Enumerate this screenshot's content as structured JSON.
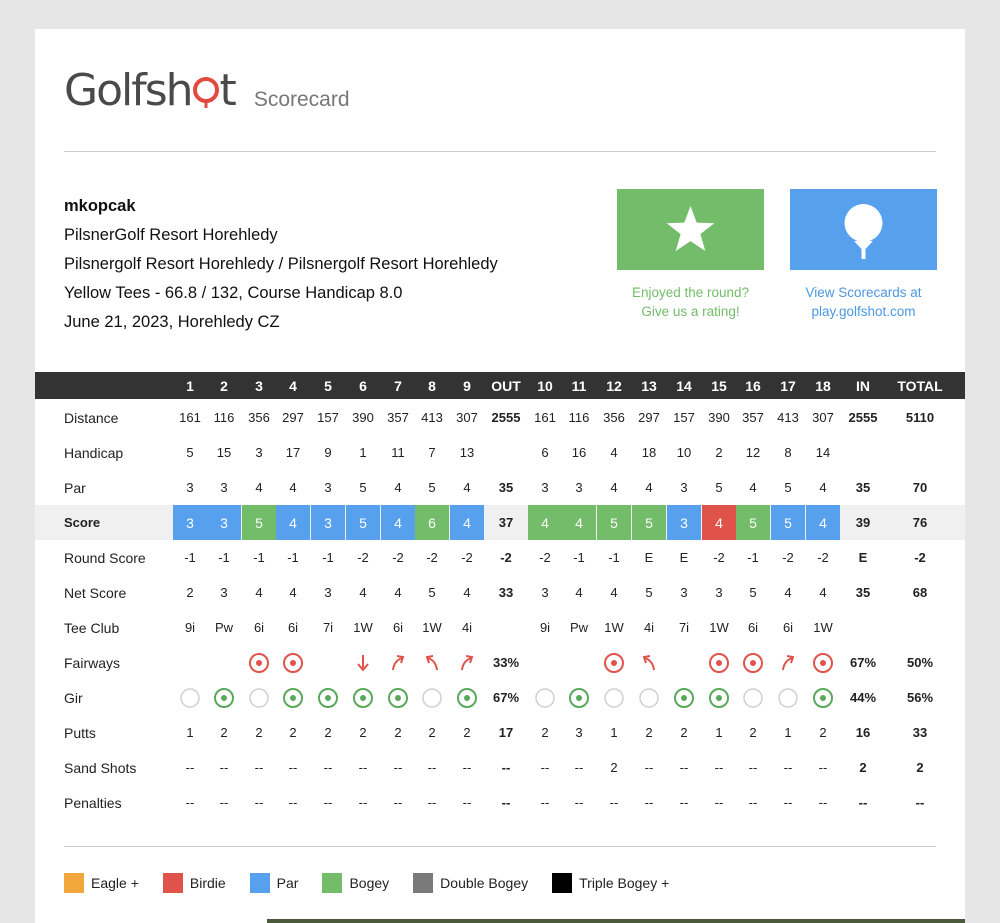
{
  "brand": {
    "name": "Golfshot",
    "name_before_o": "Golfsh",
    "name_after_o": "t",
    "subtitle": "Scorecard",
    "accent": "#e24a3f"
  },
  "round": {
    "user": "mkopcak",
    "club": "PilsnerGolf Resort Horehledy",
    "course": "Pilsnergolf Resort Horehledy / Pilsnergolf Resort Horehledy",
    "tees": "Yellow Tees - 66.8 / 132, Course Handicap 8.0",
    "date": "June 21, 2023, Horehledy CZ"
  },
  "actions": {
    "rate": {
      "icon": "star-icon",
      "caption_line1": "Enjoyed the round?",
      "caption_line2": "Give us a rating!",
      "color": "#73bd6a"
    },
    "view": {
      "icon": "golf-ball-icon",
      "caption_line1": "View Scorecards at",
      "caption_line2": "play.golfshot.com",
      "color": "#56a0ee"
    }
  },
  "columns": [
    "1",
    "2",
    "3",
    "4",
    "5",
    "6",
    "7",
    "8",
    "9",
    "OUT",
    "10",
    "11",
    "12",
    "13",
    "14",
    "15",
    "16",
    "17",
    "18",
    "IN",
    "TOTAL"
  ],
  "rows": [
    {
      "key": "distance",
      "label": "Distance",
      "values": [
        "161",
        "116",
        "356",
        "297",
        "157",
        "390",
        "357",
        "413",
        "307",
        "2555",
        "161",
        "116",
        "356",
        "297",
        "157",
        "390",
        "357",
        "413",
        "307",
        "2555",
        "5110"
      ]
    },
    {
      "key": "handicap",
      "label": "Handicap",
      "values": [
        "5",
        "15",
        "3",
        "17",
        "9",
        "1",
        "11",
        "7",
        "13",
        "",
        "6",
        "16",
        "4",
        "18",
        "10",
        "2",
        "12",
        "8",
        "14",
        "",
        ""
      ]
    },
    {
      "key": "par",
      "label": "Par",
      "values": [
        "3",
        "3",
        "4",
        "4",
        "3",
        "5",
        "4",
        "5",
        "4",
        "35",
        "3",
        "3",
        "4",
        "4",
        "3",
        "5",
        "4",
        "5",
        "4",
        "35",
        "70"
      ]
    },
    {
      "key": "score",
      "label": "Score",
      "values": [
        "3",
        "3",
        "5",
        "4",
        "3",
        "5",
        "4",
        "6",
        "4",
        "37",
        "4",
        "4",
        "5",
        "5",
        "3",
        "4",
        "5",
        "5",
        "4",
        "39",
        "76"
      ],
      "results": [
        "par",
        "par",
        "bogey",
        "par",
        "par",
        "par",
        "par",
        "bogey",
        "par",
        "",
        "bogey",
        "bogey",
        "bogey",
        "bogey",
        "par",
        "birdie",
        "bogey",
        "par",
        "par",
        "",
        ""
      ]
    },
    {
      "key": "round_score",
      "label": "Round Score",
      "values": [
        "-1",
        "-1",
        "-1",
        "-1",
        "-1",
        "-2",
        "-2",
        "-2",
        "-2",
        "-2",
        "-2",
        "-1",
        "-1",
        "E",
        "E",
        "-2",
        "-1",
        "-2",
        "-2",
        "E",
        "-2"
      ]
    },
    {
      "key": "net_score",
      "label": "Net Score",
      "values": [
        "2",
        "3",
        "4",
        "4",
        "3",
        "4",
        "4",
        "5",
        "4",
        "33",
        "3",
        "4",
        "4",
        "5",
        "3",
        "3",
        "5",
        "4",
        "4",
        "35",
        "68"
      ]
    },
    {
      "key": "tee_club",
      "label": "Tee Club",
      "values": [
        "9i",
        "Pw",
        "6i",
        "6i",
        "7i",
        "1W",
        "6i",
        "1W",
        "4i",
        "",
        "9i",
        "Pw",
        "1W",
        "4i",
        "7i",
        "1W",
        "6i",
        "6i",
        "1W",
        "",
        ""
      ]
    },
    {
      "key": "fairways",
      "label": "Fairways",
      "values": [
        "",
        "",
        "",
        "",
        "",
        "",
        "",
        "",
        "",
        "33%",
        "",
        "",
        "",
        "",
        "",
        "",
        "",
        "",
        "",
        "67%",
        "50%"
      ],
      "marks": [
        "",
        "",
        "hit",
        "hit",
        "",
        "short",
        "right",
        "left",
        "right",
        "",
        "",
        "",
        "hit",
        "left",
        "",
        "hit",
        "hit",
        "right",
        "hit",
        "",
        ""
      ]
    },
    {
      "key": "gir",
      "label": "Gir",
      "values": [
        "",
        "",
        "",
        "",
        "",
        "",
        "",
        "",
        "",
        "67%",
        "",
        "",
        "",
        "",
        "",
        "",
        "",
        "",
        "",
        "44%",
        "56%"
      ],
      "marks": [
        "miss",
        "hit",
        "miss",
        "hit",
        "hit",
        "hit",
        "hit",
        "miss",
        "hit",
        "",
        "miss",
        "hit",
        "miss",
        "miss",
        "hit",
        "hit",
        "miss",
        "miss",
        "hit",
        "",
        ""
      ]
    },
    {
      "key": "putts",
      "label": "Putts",
      "values": [
        "1",
        "2",
        "2",
        "2",
        "2",
        "2",
        "2",
        "2",
        "2",
        "17",
        "2",
        "3",
        "1",
        "2",
        "2",
        "1",
        "2",
        "1",
        "2",
        "16",
        "33"
      ]
    },
    {
      "key": "sand_shots",
      "label": "Sand Shots",
      "values": [
        "--",
        "--",
        "--",
        "--",
        "--",
        "--",
        "--",
        "--",
        "--",
        "--",
        "--",
        "--",
        "2",
        "--",
        "--",
        "--",
        "--",
        "--",
        "--",
        "2",
        "2"
      ]
    },
    {
      "key": "penalties",
      "label": "Penalties",
      "values": [
        "--",
        "--",
        "--",
        "--",
        "--",
        "--",
        "--",
        "--",
        "--",
        "--",
        "--",
        "--",
        "--",
        "--",
        "--",
        "--",
        "--",
        "--",
        "--",
        "--",
        "--"
      ]
    }
  ],
  "legend": [
    {
      "label": "Eagle +",
      "color": "#f1a73c"
    },
    {
      "label": "Birdie",
      "color": "#e0534b"
    },
    {
      "label": "Par",
      "color": "#56a0ee"
    },
    {
      "label": "Bogey",
      "color": "#73bd6a"
    },
    {
      "label": "Double Bogey",
      "color": "#7a7a7a"
    },
    {
      "label": "Triple Bogey +",
      "color": "#000000"
    }
  ],
  "colors": {
    "eagle": "#f1a73c",
    "birdie": "#e0534b",
    "par": "#56a0ee",
    "bogey": "#73bd6a",
    "double": "#7a7a7a",
    "triple": "#000000",
    "fairway_mark": "#e0534b",
    "gir_hit": "#5aa85a",
    "gir_miss": "#cfcfcf"
  }
}
